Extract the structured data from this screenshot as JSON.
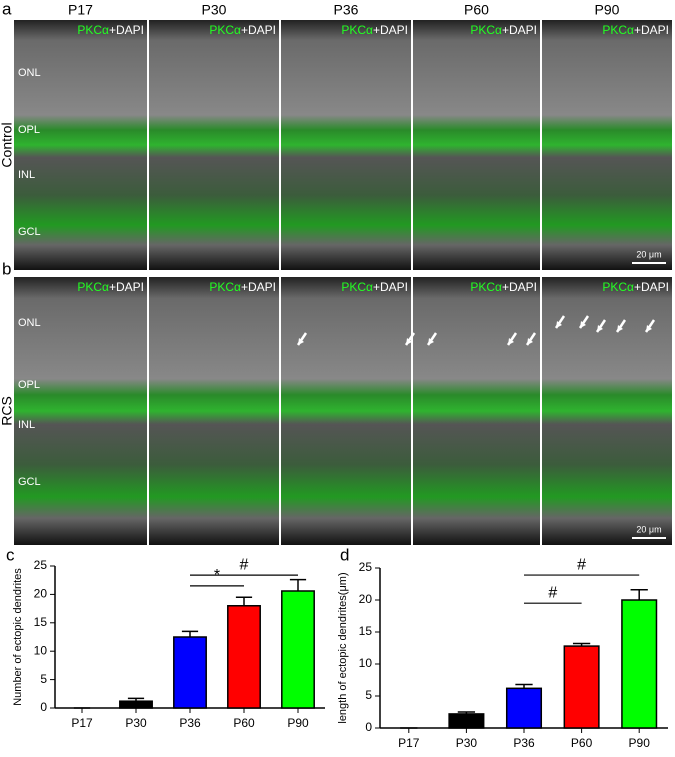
{
  "figure": {
    "panels": [
      "a",
      "b",
      "c",
      "d"
    ],
    "columns": [
      "P17",
      "P30",
      "P36",
      "P60",
      "P90"
    ],
    "rows": [
      "Control",
      "RCS"
    ],
    "stain": [
      "PKCα",
      "+DAPI"
    ],
    "layers": [
      "ONL",
      "OPL",
      "INL",
      "GCL"
    ],
    "scale_bar": "20 μm"
  },
  "chart_data": [
    {
      "type": "bar",
      "ylabel": "Number of ectopic dendrites",
      "categories": [
        "P17",
        "P30",
        "P36",
        "P60",
        "P90"
      ],
      "values": [
        0,
        1.2,
        12.5,
        18,
        20.6
      ],
      "errors": [
        0,
        0.5,
        1,
        1.5,
        2
      ],
      "colors": [
        "#000000",
        "#000000",
        "#0000ff",
        "#ff0000",
        "#00ff00"
      ],
      "ylim": [
        0,
        25
      ],
      "yticks": [
        0,
        5,
        10,
        15,
        20,
        25
      ],
      "annotations": [
        {
          "between": [
            "P36",
            "P60"
          ],
          "y": 21.5,
          "label": "*"
        },
        {
          "between": [
            "P36",
            "P90"
          ],
          "y": 23.4,
          "label": "#"
        }
      ]
    },
    {
      "type": "bar",
      "ylabel": "length of ectopic dendrites(μm)",
      "categories": [
        "P17",
        "P30",
        "P36",
        "P60",
        "P90"
      ],
      "values": [
        0,
        2.2,
        6.2,
        12.8,
        20
      ],
      "errors": [
        0,
        0.3,
        0.6,
        0.4,
        1.6
      ],
      "colors": [
        "#000000",
        "#000000",
        "#0000ff",
        "#ff0000",
        "#00ff00"
      ],
      "ylim": [
        0,
        25
      ],
      "yticks": [
        0,
        5,
        10,
        15,
        20,
        25
      ],
      "annotations": [
        {
          "between": [
            "P36",
            "P60"
          ],
          "y": 19.5,
          "label": "#"
        },
        {
          "between": [
            "P36",
            "P90"
          ],
          "y": 23.9,
          "label": "#"
        }
      ]
    }
  ]
}
